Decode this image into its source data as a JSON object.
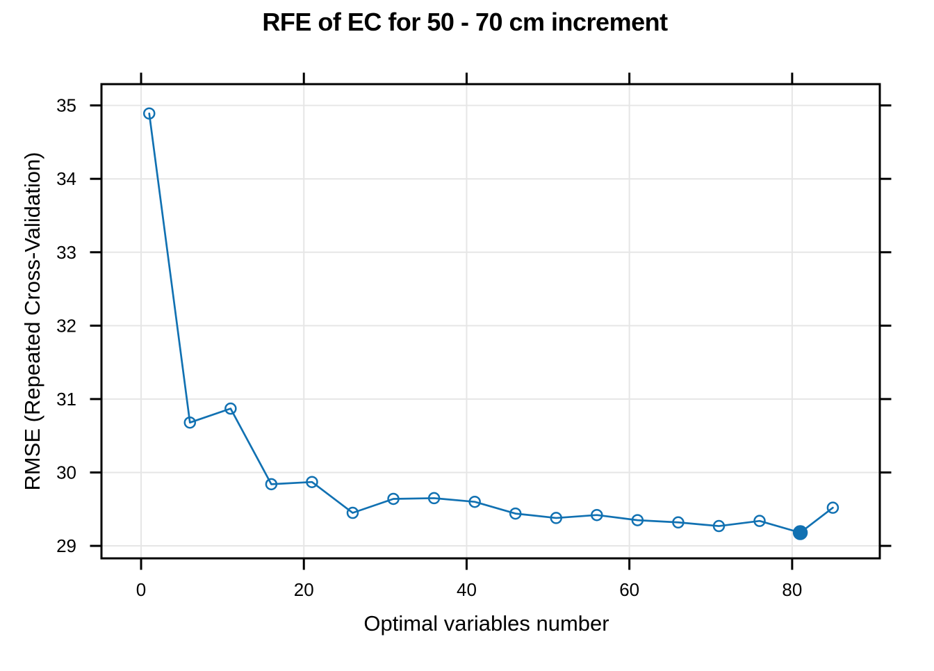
{
  "chart_data": {
    "type": "line",
    "title": "RFE of EC for 50 - 70 cm increment",
    "xlabel": "Optimal variables number",
    "ylabel": "RMSE (Repeated Cross-Validation)",
    "x": [
      1,
      6,
      11,
      16,
      21,
      26,
      31,
      36,
      41,
      46,
      51,
      56,
      61,
      66,
      71,
      76,
      81,
      85
    ],
    "y": [
      34.89,
      30.68,
      30.87,
      29.84,
      29.87,
      29.45,
      29.64,
      29.65,
      29.6,
      29.44,
      29.38,
      29.42,
      29.35,
      29.32,
      29.27,
      29.34,
      29.18,
      29.52
    ],
    "series_name": "RMSE (Repeated Cross-Validation)",
    "optimal_point": {
      "x": 81,
      "y": 29.18,
      "marker": "filled-circle"
    },
    "x_ticks": [
      0,
      20,
      40,
      60,
      80
    ],
    "y_ticks": [
      29,
      30,
      31,
      32,
      33,
      34,
      35
    ],
    "xlim": [
      -4.87,
      90.77
    ],
    "ylim": [
      28.83,
      35.29
    ],
    "grid": true,
    "legend": "none",
    "marker": "open-circle",
    "colors": {
      "line": "#1171b2",
      "grid": "#e6e6e6",
      "axis": "#000000",
      "background": "#ffffff"
    }
  }
}
